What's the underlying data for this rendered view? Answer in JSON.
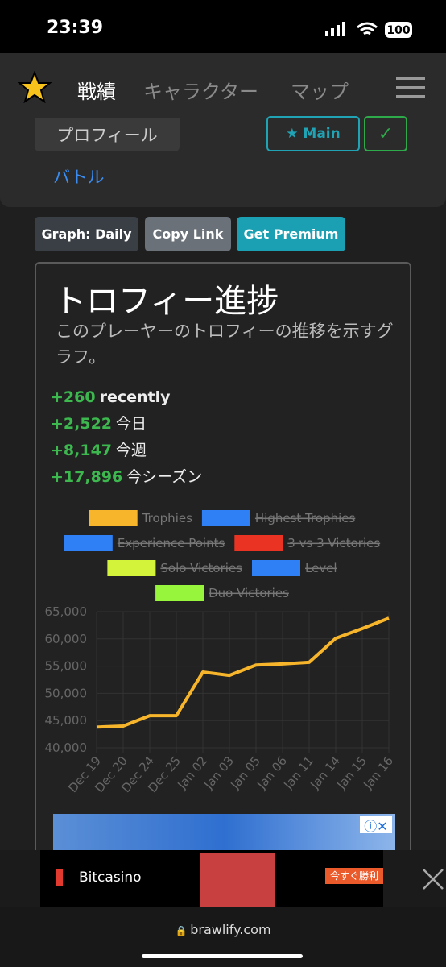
{
  "status": {
    "time": "23:39",
    "battery": "100"
  },
  "nav": {
    "items": [
      "戦績",
      "キャラクター",
      "マップ"
    ]
  },
  "profile": {
    "tab": "プロフィール",
    "main_button": "★ Main",
    "check_button": "✓",
    "battle_link": "バトル"
  },
  "toolbar": {
    "buttons": [
      "Graph: Daily",
      "Copy Link",
      "Get Premium"
    ]
  },
  "card": {
    "title": "トロフィー進捗",
    "description": "このプレーヤーのトロフィーの推移を示すグラフ。",
    "stats": [
      {
        "value": "+260",
        "label": "recently"
      },
      {
        "value": "+2,522",
        "label": "今日"
      },
      {
        "value": "+8,147",
        "label": "今週"
      },
      {
        "value": "+17,896",
        "label": "今シーズン"
      }
    ]
  },
  "chart_data": {
    "type": "line",
    "categories": [
      "Dec 19",
      "Dec 20",
      "Dec 24",
      "Dec 25",
      "Jan 02",
      "Jan 03",
      "Jan 05",
      "Jan 06",
      "Jan 11",
      "Jan 14",
      "Jan 15",
      "Jan 16"
    ],
    "series": [
      {
        "name": "Trophies",
        "color": "#f7b52c",
        "values": [
          43800,
          44000,
          45900,
          45900,
          53900,
          53300,
          55200,
          55400,
          55700,
          60100,
          61900,
          63800
        ]
      },
      {
        "name": "Highest Trophies",
        "color": "#2f7ff5",
        "hidden": true
      },
      {
        "name": "Experience Points",
        "color": "#2f7ff5",
        "hidden": true
      },
      {
        "name": "3 vs 3 Victories",
        "color": "#ea3323",
        "hidden": true
      },
      {
        "name": "Solo Victories",
        "color": "#d3f23a",
        "hidden": true
      },
      {
        "name": "Level",
        "color": "#2f7ff5",
        "hidden": true
      },
      {
        "name": "Duo Victories",
        "color": "#97f53c",
        "hidden": true
      }
    ],
    "ylim": [
      40000,
      65000
    ],
    "yticks": [
      {
        "value": 40000,
        "label": "40,000"
      },
      {
        "value": 45000,
        "label": "45,000"
      },
      {
        "value": 50000,
        "label": "50,000"
      },
      {
        "value": 55000,
        "label": "55,000"
      },
      {
        "value": 60000,
        "label": "60,000"
      },
      {
        "value": 65000,
        "label": "65,000"
      }
    ],
    "grid": true
  },
  "ads": {
    "brand": "Bitcasino",
    "cta": "今すぐ勝利"
  },
  "browser": {
    "url": "brawlify.com"
  }
}
